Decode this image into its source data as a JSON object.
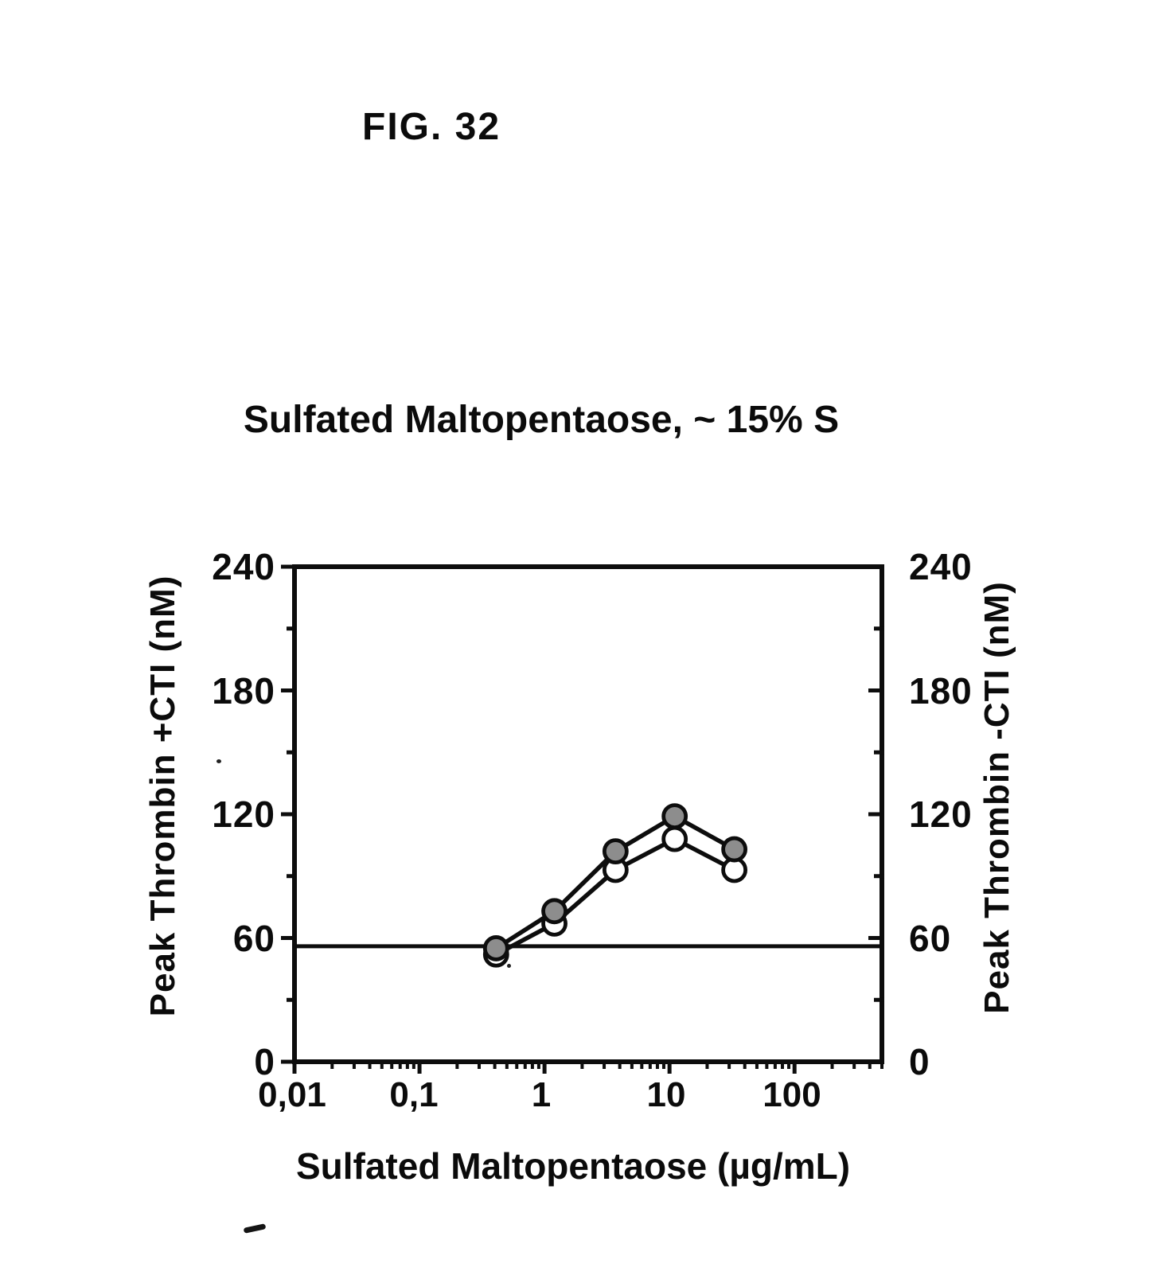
{
  "figure_label": "FIG. 32",
  "chart_data": {
    "type": "line",
    "title": "Sulfated Maltopentaose, ~ 15% S",
    "xlabel": "Sulfated Maltopentaose (µg/mL)",
    "ylabel_left": "Peak Thrombin +CTI (nM)",
    "ylabel_right": "Peak Thrombin -CTI (nM)",
    "x_scale": "log",
    "xlim": [
      0.01,
      500
    ],
    "ylim": [
      0,
      240
    ],
    "x_tick_labels": [
      "0,01",
      "0,1",
      "1",
      "10",
      "100"
    ],
    "x_tick_values": [
      0.01,
      0.1,
      1,
      10,
      100
    ],
    "y_tick_labels": [
      "240",
      "180",
      "120",
      "60",
      "0"
    ],
    "y_tick_values": [
      240,
      180,
      120,
      60,
      0
    ],
    "y_minor_step": 30,
    "reference_line_y": 56,
    "grid": false,
    "legend": "none",
    "ink_color": "#0d0d0d",
    "series": [
      {
        "name": "filled gray circles",
        "marker": "filled-circle",
        "marker_fill": "#8d8d8d",
        "x": [
          0.41,
          1.2,
          3.7,
          11,
          33
        ],
        "y": [
          55,
          73,
          102,
          119,
          103
        ]
      },
      {
        "name": "open white circles",
        "marker": "open-circle",
        "marker_fill": "#ffffff",
        "x": [
          0.41,
          1.2,
          3.7,
          11,
          33
        ],
        "y": [
          52,
          67,
          93,
          108,
          93
        ]
      }
    ]
  }
}
